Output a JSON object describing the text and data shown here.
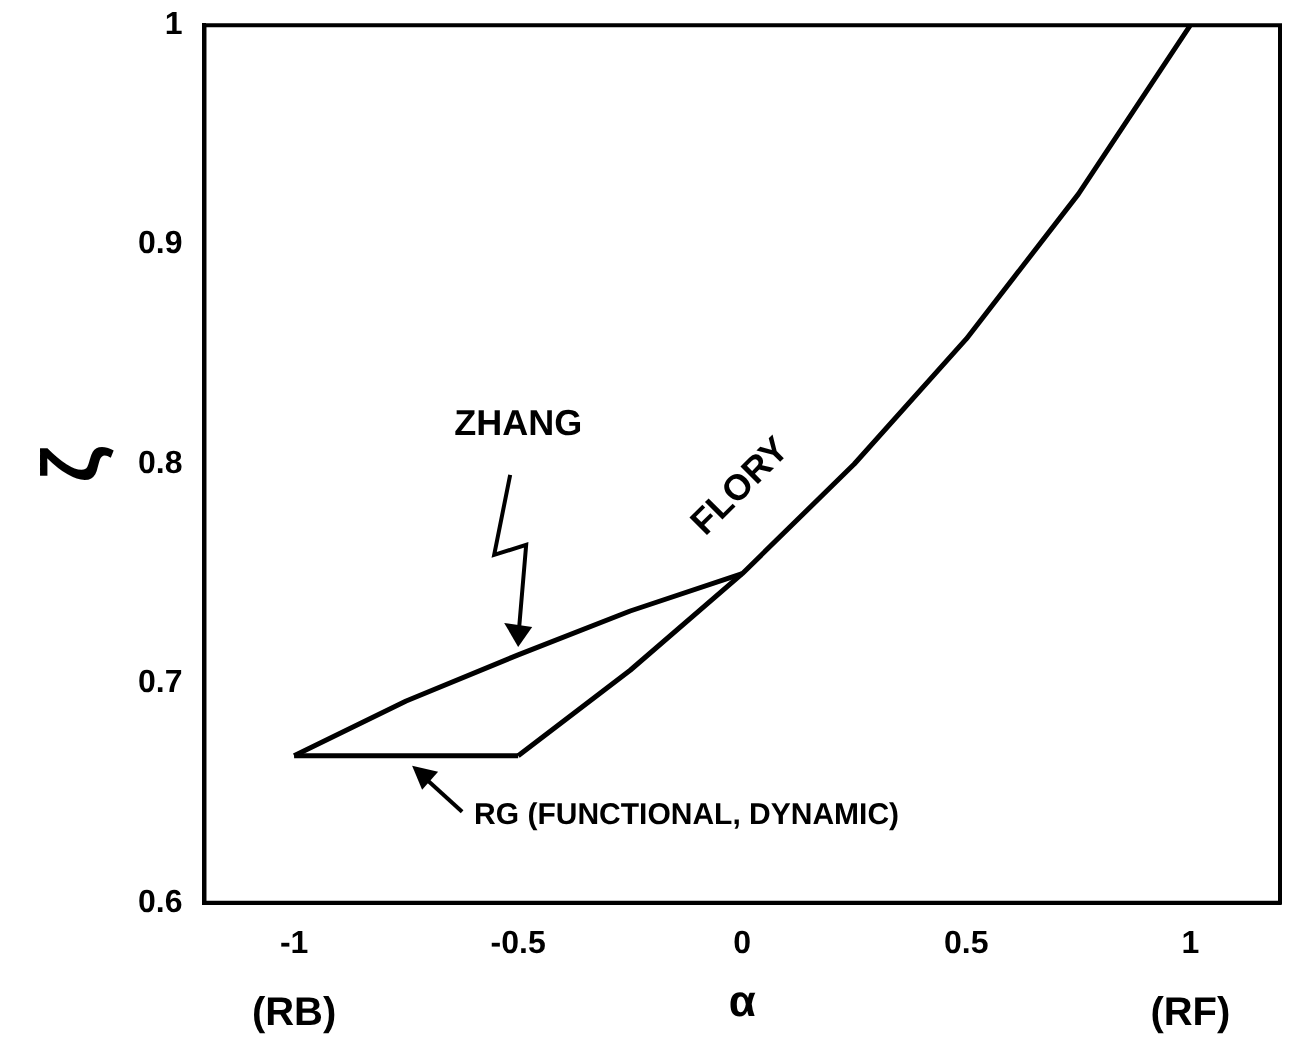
{
  "chart_data": {
    "type": "line",
    "xlabel": "α",
    "ylabel": "ζ",
    "series": [
      {
        "name": "ZHANG",
        "color": "#000000",
        "x": [
          -1,
          -0.75,
          -0.5,
          -0.25,
          0
        ],
        "values": [
          0.667,
          0.692,
          0.713,
          0.733,
          0.75
        ]
      },
      {
        "name": "FLORY",
        "color": "#000000",
        "x": [
          -0.5,
          -0.25,
          0,
          0.25,
          0.5,
          0.75,
          1
        ],
        "values": [
          0.667,
          0.706,
          0.75,
          0.8,
          0.857,
          0.923,
          1.0
        ]
      },
      {
        "name": "RG (FUNCTIONAL, DYNAMIC)",
        "color": "#000000",
        "x": [
          -1,
          -0.5
        ],
        "values": [
          0.667,
          0.667
        ]
      }
    ],
    "xlim": [
      -1.2,
      1.2
    ],
    "ylim": [
      0.6,
      1.0
    ],
    "xticks": [
      -1,
      -0.5,
      0,
      0.5,
      1
    ],
    "yticks": [
      0.6,
      0.7,
      0.8,
      0.9,
      1.0
    ],
    "annotations": [
      "(RB)",
      "(RF)"
    ],
    "grid": false,
    "legend": false,
    "marker": "none",
    "line_style": "solid"
  }
}
